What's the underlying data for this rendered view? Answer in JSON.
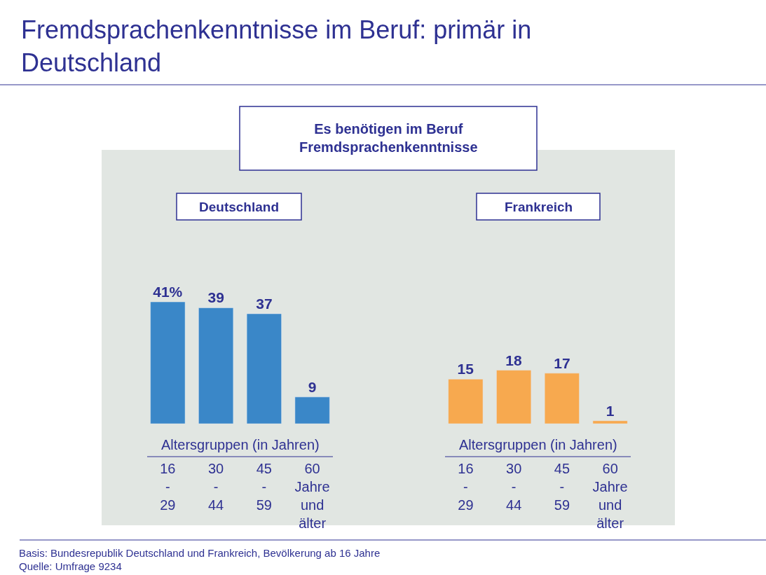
{
  "chart_data": [
    {
      "type": "bar",
      "title": "Fremdsprachenkenntnisse im Beruf: primär in Deutschland",
      "subtitle": "Es benötigen im Beruf Fremdsprachenkenntnisse",
      "annotations": [
        "Deutschland",
        "Basis: Bundesrepublik Deutschland und Frankreich, Bevölkerung ab 16 Jahre",
        "Quelle: Umfrage 9234"
      ],
      "xlabel": "Altersgruppen (in Jahren)",
      "categories": [
        "16\n-\n29",
        "30\n-\n44",
        "45\n-\n59",
        "60\nJahre\nund\nälter"
      ],
      "values": [
        41,
        39,
        37,
        9
      ],
      "value_labels": [
        "41%",
        "39",
        "37",
        "9"
      ],
      "color": "#3a87c8"
    },
    {
      "type": "bar",
      "title": "Frankreich",
      "xlabel": "Altersgruppen (in Jahren)",
      "categories": [
        "16\n-\n29",
        "30\n-\n44",
        "45\n-\n59",
        "60\nJahre\nund\nälter"
      ],
      "values": [
        15,
        18,
        17,
        1
      ],
      "value_labels": [
        "15",
        "18",
        "17",
        "1"
      ],
      "color": "#f7a94f"
    }
  ]
}
